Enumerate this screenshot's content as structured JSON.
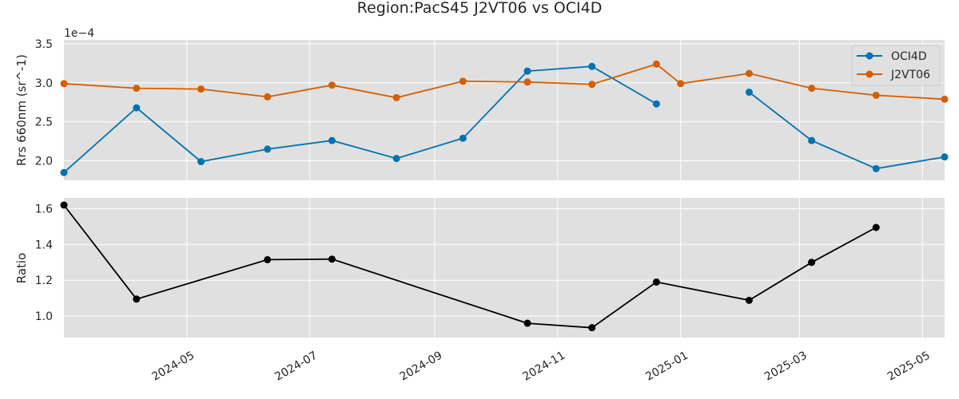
{
  "chart_data": {
    "type": "line",
    "title": "Region:PacS45 J2VT06 vs OCI4D",
    "x_axis": {
      "type": "date",
      "range": [
        "2024-03-01",
        "2025-05-12"
      ],
      "tick_dates": [
        "2024-05-01",
        "2024-07-01",
        "2024-09-01",
        "2024-11-01",
        "2025-01-01",
        "2025-03-01",
        "2025-05-01"
      ],
      "tick_labels": [
        "2024-05",
        "2024-07",
        "2024-09",
        "2024-11",
        "2025-01",
        "2025-03",
        "2025-05"
      ]
    },
    "panels": [
      {
        "ylabel": "Rrs 660nm (sr^-1)",
        "y_offset_label": "1e−4",
        "ylim": [
          1.75,
          3.55
        ],
        "yticks": [
          2.0,
          2.5,
          3.0,
          3.5
        ],
        "ytick_labels": [
          "2.0",
          "2.5",
          "3.0",
          "3.5"
        ],
        "legend": "top-right",
        "series": [
          {
            "name": "OCI4D",
            "color": "#0072B2",
            "points": [
              {
                "x": "2024-03-01",
                "y": 1.85
              },
              {
                "x": "2024-04-06",
                "y": 2.68
              },
              {
                "x": "2024-05-08",
                "y": 1.99
              },
              {
                "x": "2024-06-10",
                "y": 2.15
              },
              {
                "x": "2024-07-12",
                "y": 2.26
              },
              {
                "x": "2024-08-13",
                "y": 2.03
              },
              {
                "x": "2024-09-15",
                "y": 2.29
              },
              {
                "x": "2024-10-17",
                "y": 3.15
              },
              {
                "x": "2024-11-18",
                "y": 3.21
              },
              {
                "x": "2024-12-20",
                "y": 2.73
              },
              {
                "x": "2025-01-21",
                "y": null
              },
              {
                "x": "2025-02-04",
                "y": 2.88
              },
              {
                "x": "2025-03-07",
                "y": 2.26
              },
              {
                "x": "2025-04-08",
                "y": 1.9
              },
              {
                "x": "2025-05-12",
                "y": 2.05
              }
            ]
          },
          {
            "name": "J2VT06",
            "color": "#D55E00",
            "points": [
              {
                "x": "2024-03-01",
                "y": 2.99
              },
              {
                "x": "2024-04-06",
                "y": 2.93
              },
              {
                "x": "2024-05-08",
                "y": 2.92
              },
              {
                "x": "2024-06-10",
                "y": 2.82
              },
              {
                "x": "2024-07-12",
                "y": 2.97
              },
              {
                "x": "2024-08-13",
                "y": 2.81
              },
              {
                "x": "2024-09-15",
                "y": 3.02
              },
              {
                "x": "2024-10-17",
                "y": 3.01
              },
              {
                "x": "2024-11-18",
                "y": 2.98
              },
              {
                "x": "2024-12-20",
                "y": 3.24
              },
              {
                "x": "2025-01-01",
                "y": 2.99
              },
              {
                "x": "2025-02-04",
                "y": 3.12
              },
              {
                "x": "2025-03-07",
                "y": 2.93
              },
              {
                "x": "2025-04-08",
                "y": 2.84
              },
              {
                "x": "2025-05-12",
                "y": 2.79
              }
            ]
          }
        ]
      },
      {
        "ylabel": "Ratio",
        "ylim": [
          0.88,
          1.66
        ],
        "yticks": [
          1.0,
          1.2,
          1.4,
          1.6
        ],
        "ytick_labels": [
          "1.0",
          "1.2",
          "1.4",
          "1.6"
        ],
        "series": [
          {
            "color": "#000000",
            "points": [
              {
                "x": "2024-03-01",
                "y": 1.62
              },
              {
                "x": "2024-04-06",
                "y": 1.095
              },
              {
                "x": "2024-06-10",
                "y": 1.315
              },
              {
                "x": "2024-07-12",
                "y": 1.318
              },
              {
                "x": "2024-10-17",
                "y": 0.96
              },
              {
                "x": "2024-11-18",
                "y": 0.935
              },
              {
                "x": "2024-12-20",
                "y": 1.19
              },
              {
                "x": "2025-02-04",
                "y": 1.088
              },
              {
                "x": "2025-03-07",
                "y": 1.3
              },
              {
                "x": "2025-04-08",
                "y": 1.495
              }
            ]
          }
        ]
      }
    ],
    "grid": true,
    "background_color": "#E0E0E0",
    "grid_color": "#FFFFFF"
  }
}
